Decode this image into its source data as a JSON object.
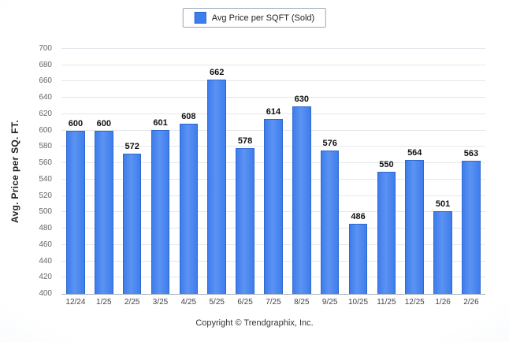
{
  "footer": {
    "copyright": "Copyright © Trendgraphix, Inc."
  },
  "chart_data": {
    "type": "bar",
    "legend": "Avg Price per SQFT (Sold)",
    "legend_position": "top-center",
    "title": "",
    "xlabel": "",
    "ylabel": "Avg. Price per SQ. FT.",
    "ylim": [
      400,
      700
    ],
    "ytick_step": 20,
    "grid": true,
    "bar_color": "#3e7ded",
    "categories": [
      "12/24",
      "1/25",
      "2/25",
      "3/25",
      "4/25",
      "5/25",
      "6/25",
      "7/25",
      "8/25",
      "9/25",
      "10/25",
      "11/25",
      "12/25",
      "1/26",
      "2/26"
    ],
    "values": [
      600,
      600,
      572,
      601,
      608,
      662,
      578,
      614,
      630,
      576,
      486,
      550,
      564,
      501,
      563
    ]
  }
}
